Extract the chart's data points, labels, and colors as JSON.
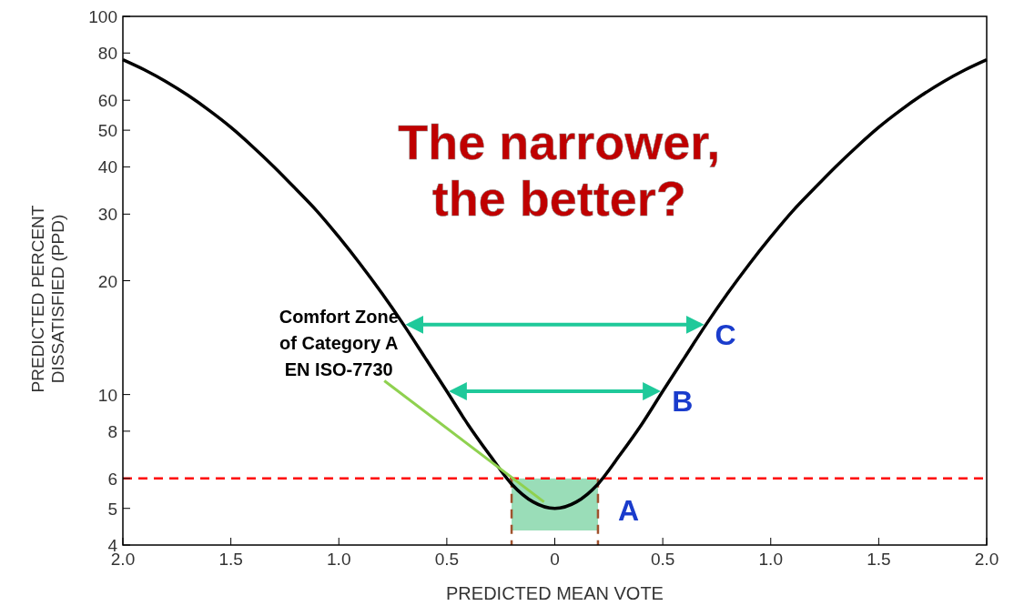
{
  "chart_data": {
    "type": "line",
    "title": "The narrower,\nthe better?",
    "xlabel": "PREDICTED MEAN VOTE",
    "ylabel": "PREDICTED PERCENT\nDISSATISFIED (PPD)",
    "x": [
      -2,
      -1.9,
      -1.8,
      -1.7,
      -1.6,
      -1.5,
      -1.4,
      -1.3,
      -1.2,
      -1.1,
      -1,
      -0.9,
      -0.8,
      -0.7,
      -0.6,
      -0.5,
      -0.4,
      -0.3,
      -0.2,
      -0.1,
      0,
      0.1,
      0.2,
      0.3,
      0.4,
      0.5,
      0.6,
      0.7,
      0.8,
      0.9,
      1,
      1.1,
      1.2,
      1.3,
      1.4,
      1.5,
      1.6,
      1.7,
      1.8,
      1.9,
      2
    ],
    "series": [
      {
        "color": "#000000",
        "values": [
          76.8,
          72.2,
          67.2,
          61.9,
          56.4,
          50.9,
          45.3,
          40,
          35,
          30.5,
          26.1,
          22.1,
          18.5,
          15.3,
          12.5,
          10.2,
          8.3,
          6.9,
          5.8,
          5.2,
          5,
          5.2,
          5.8,
          6.9,
          8.3,
          10.2,
          12.5,
          15.3,
          18.5,
          22.1,
          26.1,
          30.5,
          35,
          40,
          45.3,
          50.9,
          56.4,
          61.9,
          67.2,
          72.2,
          76.8
        ]
      }
    ],
    "xlim": [
      -2,
      2
    ],
    "xticks": [
      {
        "value": -2,
        "label": "2.0"
      },
      {
        "value": -1.5,
        "label": "1.5"
      },
      {
        "value": -1,
        "label": "1.0"
      },
      {
        "value": -0.5,
        "label": "0.5"
      },
      0,
      {
        "value": 0.5,
        "label": "0.5"
      },
      {
        "value": 1,
        "label": "1.0"
      },
      {
        "value": 1.5,
        "label": "1.5"
      },
      {
        "value": 2,
        "label": "2.0"
      }
    ],
    "ylim": [
      4,
      100
    ],
    "yticks": [
      4,
      5,
      6,
      8,
      10,
      20,
      30,
      40,
      50,
      60,
      80,
      100
    ],
    "log": true,
    "grid": false,
    "marker": "none",
    "line_style": "solid",
    "ref_lines": [
      {
        "axis": "y",
        "value": 6,
        "color": "#ff0000",
        "line_style": "dashed"
      },
      {
        "axis": "x",
        "value": -0.2,
        "color": "#a0522d",
        "line_style": "dashed"
      },
      {
        "axis": "x",
        "value": 0.2,
        "color": "#a0522d",
        "line_style": "dashed"
      }
    ],
    "bands": [
      {
        "axis": "x",
        "from": -0.2,
        "to": 0.2,
        "color": "#8fd9b0"
      }
    ],
    "annotations": [
      {
        "text": "Comfort Zone\nof Category A\nEN ISO-7730",
        "x": -0.05,
        "y": 5.2
      },
      {
        "text": "A",
        "x": 0.2,
        "y": 5.8
      },
      {
        "text": "B",
        "x": 0.5,
        "y": 10.2
      },
      {
        "text": "C",
        "x": 0.7,
        "y": 15.3
      }
    ]
  }
}
